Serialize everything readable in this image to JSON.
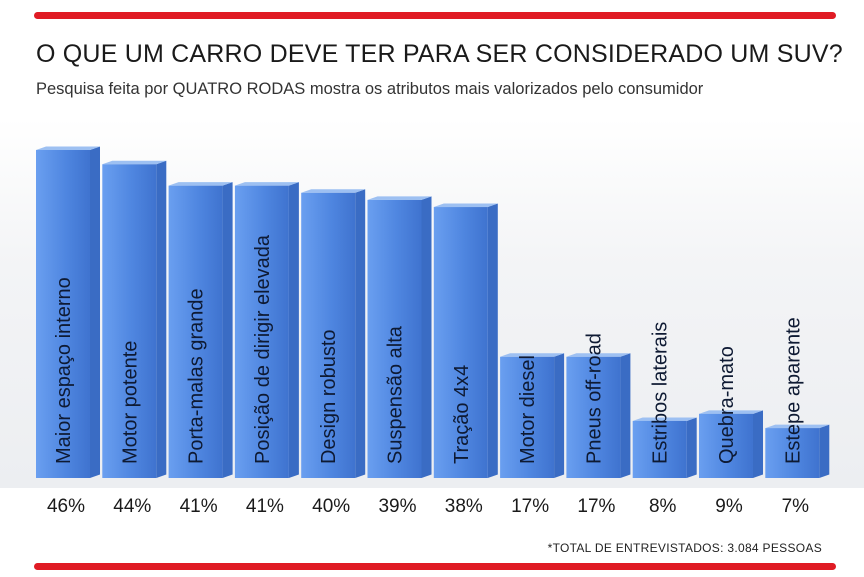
{
  "title": "O QUE UM CARRO DEVE TER PARA SER CONSIDERADO UM SUV?",
  "subtitle": "Pesquisa feita por QUATRO RODAS mostra os atributos mais valorizados pelo consumidor",
  "footnote": "*TOTAL DE ENTREVISTADOS: 3.084 PESSOAS",
  "colors": {
    "rule": "#e01b24",
    "bar_front": "#4f86e0",
    "bar_side": "#3a6cc4",
    "bar_top": "#9dc0f2"
  },
  "chart_data": {
    "type": "bar",
    "categories": [
      "Maior espaço interno",
      "Motor potente",
      "Porta-malas grande",
      "Posição de dirigir elevada",
      "Design robusto",
      "Suspensão alta",
      "Tração 4x4",
      "Motor diesel",
      "Pneus off-road",
      "Estribos laterais",
      "Quebra-mato",
      "Estepe aparente"
    ],
    "values": [
      46,
      44,
      41,
      41,
      40,
      39,
      38,
      17,
      17,
      8,
      9,
      7
    ],
    "value_labels": [
      "46%",
      "44%",
      "41%",
      "41%",
      "40%",
      "39%",
      "38%",
      "17%",
      "17%",
      "8%",
      "9%",
      "7%"
    ],
    "ylim": [
      0,
      46
    ],
    "grid": false
  }
}
